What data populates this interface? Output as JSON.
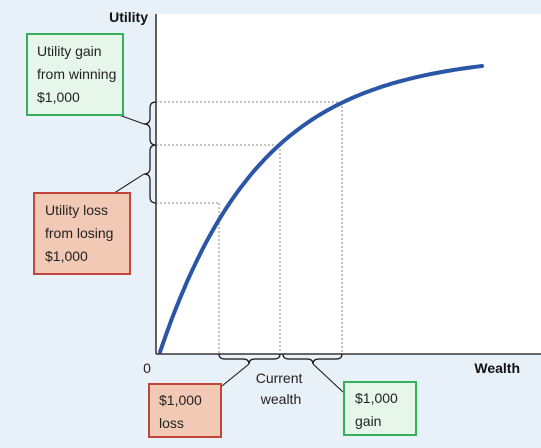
{
  "chart_data": {
    "type": "line",
    "title": "",
    "xlabel": "Wealth",
    "ylabel": "Utility",
    "origin_label": "0",
    "series": [
      {
        "color": "#2b55a6",
        "curve": "concave"
      }
    ],
    "annotations": {
      "gain_utility": [
        "Utility gain",
        "from winning",
        "$1,000"
      ],
      "loss_utility": [
        "Utility loss",
        "from losing",
        "$1,000"
      ],
      "current_wealth": [
        "Current",
        "wealth"
      ],
      "loss_wealth": [
        "$1,000",
        "loss"
      ],
      "gain_wealth": [
        "$1,000",
        "gain"
      ]
    },
    "colors": {
      "curve": "#2b55a6",
      "gain_border": "#35b05a",
      "gain_fill": "#e6f6ea",
      "loss_border": "#c1453a",
      "loss_fill": "#f2c9b5",
      "background": "#e9f1f8"
    }
  }
}
